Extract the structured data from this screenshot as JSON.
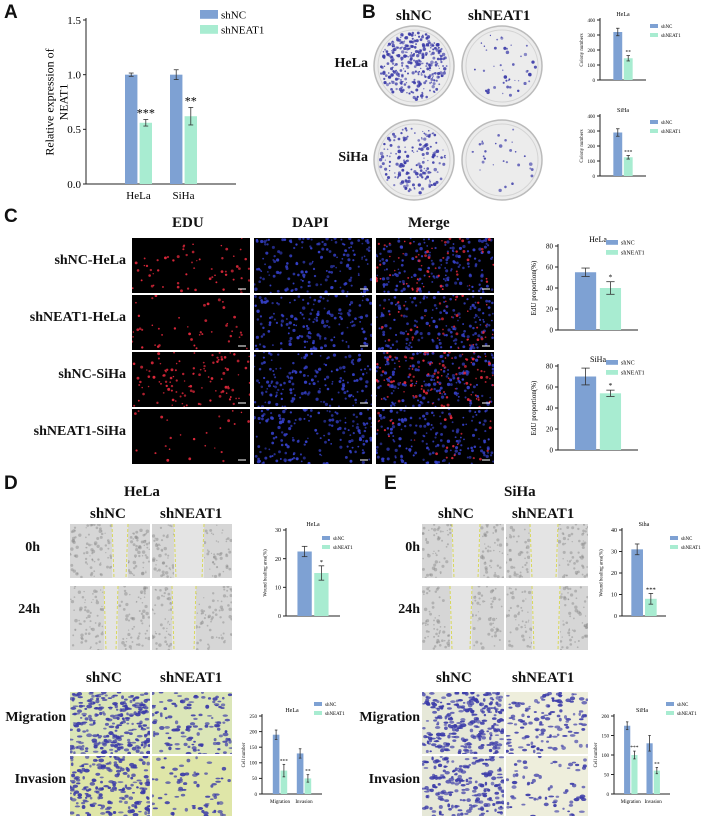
{
  "colors": {
    "shNC": "#7ea1d3",
    "shNEAT1": "#a8ecd1",
    "edu": "#e0283b",
    "dapi": "#3540c8",
    "crystal": "#3a3aa8"
  },
  "panel_labels": [
    "A",
    "B",
    "C",
    "D",
    "E"
  ],
  "b": {
    "headers": [
      "shNC",
      "shNEAT1"
    ],
    "rows": [
      "HeLa",
      "SiHa"
    ]
  },
  "c": {
    "headers": [
      "EDU",
      "DAPI",
      "Merge"
    ],
    "rows": [
      "shNC-HeLa",
      "shNEAT1-HeLa",
      "shNC-SiHa",
      "shNEAT1-SiHa"
    ]
  },
  "d": {
    "title": "HeLa",
    "headers": [
      "shNC",
      "shNEAT1"
    ],
    "rows": [
      "0h",
      "24h"
    ],
    "trans_headers": [
      "shNC",
      "shNEAT1"
    ],
    "trans_rows": [
      "Migration",
      "Invasion"
    ]
  },
  "e": {
    "title": "SiHa",
    "headers": [
      "shNC",
      "shNEAT1"
    ],
    "rows": [
      "0h",
      "24h"
    ],
    "trans_headers": [
      "shNC",
      "shNEAT1"
    ],
    "trans_rows": [
      "Migration",
      "Invasion"
    ]
  },
  "chart_data": [
    {
      "id": "A",
      "type": "bar",
      "title": "",
      "categories": [
        "HeLa",
        "SiHa"
      ],
      "series": [
        {
          "name": "shNC",
          "values": [
            1.0,
            1.0
          ],
          "err": [
            0.015,
            0.045
          ]
        },
        {
          "name": "shNEAT1",
          "values": [
            0.56,
            0.62
          ],
          "err": [
            0.03,
            0.08
          ]
        }
      ],
      "sig": [
        [
          "",
          "***"
        ],
        [
          "",
          "**"
        ]
      ],
      "ylabel": "Relative expression of NEAT1",
      "xlabel": "",
      "ylim": [
        0,
        1.5
      ],
      "yticks": [
        "0.0",
        "0.5",
        "1.0",
        "1.5"
      ],
      "legend": "top-right"
    },
    {
      "id": "B1",
      "type": "bar",
      "title": "HeLa",
      "categories": [
        ""
      ],
      "series": [
        {
          "name": "shNC",
          "values": [
            320
          ],
          "err": [
            25
          ]
        },
        {
          "name": "shNEAT1",
          "values": [
            145
          ],
          "err": [
            18
          ]
        }
      ],
      "sig": [
        [
          "",
          "**"
        ]
      ],
      "ylabel": "Colony numbers",
      "xlabel": "",
      "ylim": [
        0,
        400
      ],
      "yticks": [
        "0",
        "100",
        "200",
        "300",
        "400"
      ],
      "legend": "top-right"
    },
    {
      "id": "B2",
      "type": "bar",
      "title": "SiHa",
      "categories": [
        ""
      ],
      "series": [
        {
          "name": "shNC",
          "values": [
            290
          ],
          "err": [
            25
          ]
        },
        {
          "name": "shNEAT1",
          "values": [
            125
          ],
          "err": [
            12
          ]
        }
      ],
      "sig": [
        [
          "",
          "***"
        ]
      ],
      "ylabel": "Colony numbers",
      "xlabel": "",
      "ylim": [
        0,
        400
      ],
      "yticks": [
        "0",
        "100",
        "200",
        "300",
        "400"
      ],
      "legend": "top-right"
    },
    {
      "id": "C1",
      "type": "bar",
      "title": "HeLa",
      "categories": [
        ""
      ],
      "series": [
        {
          "name": "shNC",
          "values": [
            55
          ],
          "err": [
            4
          ]
        },
        {
          "name": "shNEAT1",
          "values": [
            40
          ],
          "err": [
            6
          ]
        }
      ],
      "sig": [
        [
          "",
          "*"
        ]
      ],
      "ylabel": "EdU proportion(%)",
      "xlabel": "",
      "ylim": [
        0,
        80
      ],
      "yticks": [
        "0",
        "20",
        "40",
        "60",
        "80"
      ],
      "legend": "top-right"
    },
    {
      "id": "C2",
      "type": "bar",
      "title": "SiHa",
      "categories": [
        ""
      ],
      "series": [
        {
          "name": "shNC",
          "values": [
            70
          ],
          "err": [
            8
          ]
        },
        {
          "name": "shNEAT1",
          "values": [
            54
          ],
          "err": [
            3
          ]
        }
      ],
      "sig": [
        [
          "",
          "*"
        ]
      ],
      "ylabel": "EdU proportion(%)",
      "xlabel": "",
      "ylim": [
        0,
        80
      ],
      "yticks": [
        "0",
        "20",
        "40",
        "60",
        "80"
      ],
      "legend": "top-right"
    },
    {
      "id": "D1",
      "type": "bar",
      "title": "HeLa",
      "categories": [
        ""
      ],
      "series": [
        {
          "name": "shNC",
          "values": [
            22.5
          ],
          "err": [
            1.8
          ]
        },
        {
          "name": "shNEAT1",
          "values": [
            15
          ],
          "err": [
            2.5
          ]
        }
      ],
      "sig": [
        [
          "",
          "*"
        ]
      ],
      "ylabel": "Wound healing area(%)",
      "xlabel": "",
      "ylim": [
        0,
        30
      ],
      "yticks": [
        "0",
        "10",
        "20",
        "30"
      ],
      "legend": "top-right"
    },
    {
      "id": "D2",
      "type": "bar",
      "title": "HeLa",
      "categories": [
        "Migration",
        "Invasion"
      ],
      "series": [
        {
          "name": "shNC",
          "values": [
            190,
            130
          ],
          "err": [
            15,
            15
          ]
        },
        {
          "name": "shNEAT1",
          "values": [
            75,
            50
          ],
          "err": [
            20,
            12
          ]
        }
      ],
      "sig": [
        [
          "",
          "***"
        ],
        [
          "",
          "**"
        ]
      ],
      "ylabel": "Cell number",
      "xlabel": "",
      "ylim": [
        0,
        250
      ],
      "yticks": [
        "0",
        "50",
        "100",
        "150",
        "200",
        "250"
      ],
      "legend": "top-right"
    },
    {
      "id": "E1",
      "type": "bar",
      "title": "Siha",
      "categories": [
        ""
      ],
      "series": [
        {
          "name": "shNC",
          "values": [
            31
          ],
          "err": [
            2.5
          ]
        },
        {
          "name": "shNEAT1",
          "values": [
            8
          ],
          "err": [
            2.5
          ]
        }
      ],
      "sig": [
        [
          "",
          "***"
        ]
      ],
      "ylabel": "Wound healing area(%)",
      "xlabel": "",
      "ylim": [
        0,
        40
      ],
      "yticks": [
        "0",
        "10",
        "20",
        "30",
        "40"
      ],
      "legend": "top-right"
    },
    {
      "id": "E2",
      "type": "bar",
      "title": "SiHa",
      "categories": [
        "Migration",
        "Invasion"
      ],
      "series": [
        {
          "name": "shNC",
          "values": [
            175,
            130
          ],
          "err": [
            10,
            20
          ]
        },
        {
          "name": "shNEAT1",
          "values": [
            100,
            60
          ],
          "err": [
            10,
            8
          ]
        }
      ],
      "sig": [
        [
          "",
          "***"
        ],
        [
          "",
          "**"
        ]
      ],
      "ylabel": "Cell number",
      "xlabel": "",
      "ylim": [
        0,
        200
      ],
      "yticks": [
        "0",
        "50",
        "100",
        "150",
        "200"
      ],
      "legend": "top-right"
    }
  ]
}
